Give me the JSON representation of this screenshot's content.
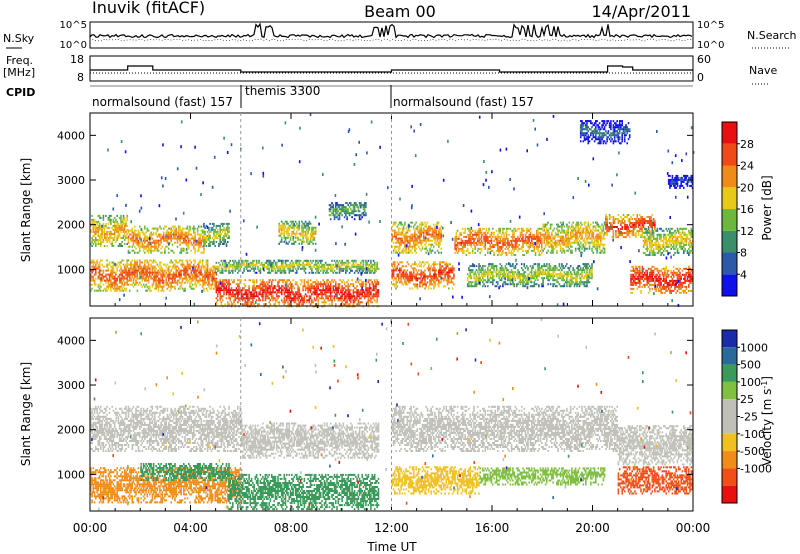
{
  "header": {
    "station": "Inuvik (fitACF)",
    "beam": "Beam 00",
    "date": "14/Apr/2011"
  },
  "nsky_panel": {
    "left_label": "N.Sky",
    "right_label": "N.Search",
    "left_ticks": [
      "10^5",
      "10^0"
    ],
    "right_ticks": [
      "10^5",
      "10^0"
    ]
  },
  "freq_panel": {
    "label_line1": "Freq.",
    "label_line2": "[MHz]",
    "right_label": "Nave",
    "left_ticks": [
      "18",
      "8"
    ],
    "right_ticks": [
      "60",
      "0"
    ]
  },
  "cpid": {
    "label": "CPID",
    "segments": [
      {
        "label": "normalsound (fast) 157",
        "start_hour": 0
      },
      {
        "label": "themis 3300",
        "start_hour": 6
      },
      {
        "label": "normalsound (fast) 157",
        "start_hour": 12
      }
    ]
  },
  "x_axis": {
    "title": "Time UT",
    "ticks": [
      "00:00",
      "04:00",
      "08:00",
      "12:00",
      "16:00",
      "20:00",
      "00:00"
    ],
    "range_hours": [
      0,
      24
    ]
  },
  "colors": {
    "power": [
      "#1010e8",
      "#2c5aa8",
      "#3a8f6a",
      "#6cb83c",
      "#e8c818",
      "#f08a18",
      "#f04a18",
      "#e81010"
    ],
    "velocity": [
      "#e81010",
      "#f05018",
      "#f08c18",
      "#f0c020",
      "#c0c0b8",
      "#c0c0b8",
      "#80c040",
      "#3a9a5a",
      "#2a6a9a",
      "#1a2aa8"
    ]
  },
  "chart_data": [
    {
      "type": "heatmap",
      "panel": "power",
      "ylabel": "Slant Range [km]",
      "yticks": [
        "1000",
        "2000",
        "3000",
        "4000"
      ],
      "ylim": [
        180,
        4500
      ],
      "xlim_hours": [
        0,
        24
      ],
      "colorbar": {
        "label": "Power [dB]",
        "ticks": [
          "4",
          "8",
          "12",
          "16",
          "20",
          "24",
          "28"
        ],
        "range": [
          0,
          32
        ]
      },
      "bands": [
        {
          "t_start": 0.0,
          "t_end": 1.5,
          "r_center": 1850,
          "r_half": 350,
          "value": 22
        },
        {
          "t_start": 1.5,
          "t_end": 4.5,
          "r_center": 1650,
          "r_half": 300,
          "value": 24
        },
        {
          "t_start": 4.5,
          "t_end": 5.5,
          "r_center": 1750,
          "r_half": 250,
          "value": 18
        },
        {
          "t_start": 0.0,
          "t_end": 5.0,
          "r_center": 850,
          "r_half": 350,
          "value": 26
        },
        {
          "t_start": 5.0,
          "t_end": 11.5,
          "r_center": 450,
          "r_half": 300,
          "value": 30
        },
        {
          "t_start": 5.0,
          "t_end": 11.5,
          "r_center": 1050,
          "r_half": 150,
          "value": 18
        },
        {
          "t_start": 7.5,
          "t_end": 9.0,
          "r_center": 1800,
          "r_half": 250,
          "value": 20
        },
        {
          "t_start": 9.5,
          "t_end": 11.0,
          "r_center": 2300,
          "r_half": 200,
          "value": 14
        },
        {
          "t_start": 12.0,
          "t_end": 14.5,
          "r_center": 850,
          "r_half": 300,
          "value": 28
        },
        {
          "t_start": 12.0,
          "t_end": 14.0,
          "r_center": 1700,
          "r_half": 350,
          "value": 24
        },
        {
          "t_start": 14.5,
          "t_end": 18.0,
          "r_center": 1600,
          "r_half": 300,
          "value": 26
        },
        {
          "t_start": 15.0,
          "t_end": 20.0,
          "r_center": 850,
          "r_half": 250,
          "value": 18
        },
        {
          "t_start": 18.0,
          "t_end": 20.5,
          "r_center": 1700,
          "r_half": 350,
          "value": 22
        },
        {
          "t_start": 20.5,
          "t_end": 22.5,
          "r_center": 1950,
          "r_half": 250,
          "value": 28
        },
        {
          "t_start": 21.5,
          "t_end": 24.0,
          "r_center": 750,
          "r_half": 300,
          "value": 30
        },
        {
          "t_start": 22.0,
          "t_end": 24.0,
          "r_center": 1600,
          "r_half": 300,
          "value": 20
        },
        {
          "t_start": 19.5,
          "t_end": 21.5,
          "r_center": 4050,
          "r_half": 250,
          "value": 8
        },
        {
          "t_start": 23.0,
          "t_end": 24.0,
          "r_center": 2950,
          "r_half": 150,
          "value": 6
        }
      ]
    },
    {
      "type": "heatmap",
      "panel": "velocity",
      "ylabel": "Slant Range [km]",
      "yticks": [
        "1000",
        "2000",
        "3000",
        "4000"
      ],
      "ylim": [
        180,
        4500
      ],
      "xlim_hours": [
        0,
        24
      ],
      "colorbar": {
        "label": "Velocity [m s^-1]",
        "ticks": [
          "1000",
          "500",
          "100",
          "25",
          "-25",
          "-100",
          "-500",
          "-1000"
        ]
      },
      "bands": [
        {
          "t_start": 0.0,
          "t_end": 6.0,
          "r_center": 2000,
          "r_half": 500,
          "color_index": 4
        },
        {
          "t_start": 6.0,
          "t_end": 11.5,
          "r_center": 1750,
          "r_half": 400,
          "color_index": 5
        },
        {
          "t_start": 12.0,
          "t_end": 21.0,
          "r_center": 2000,
          "r_half": 500,
          "color_index": 4
        },
        {
          "t_start": 21.0,
          "t_end": 24.0,
          "r_center": 1650,
          "r_half": 450,
          "color_index": 5
        },
        {
          "t_start": 0.0,
          "t_end": 6.0,
          "r_center": 750,
          "r_half": 400,
          "color_index": 2
        },
        {
          "t_start": 2.0,
          "t_end": 5.5,
          "r_center": 1050,
          "r_half": 200,
          "color_index": 7
        },
        {
          "t_start": 5.5,
          "t_end": 11.5,
          "r_center": 600,
          "r_half": 400,
          "color_index": 7
        },
        {
          "t_start": 12.0,
          "t_end": 15.5,
          "r_center": 850,
          "r_half": 300,
          "color_index": 3
        },
        {
          "t_start": 15.5,
          "t_end": 20.5,
          "r_center": 950,
          "r_half": 200,
          "color_index": 6
        },
        {
          "t_start": 21.0,
          "t_end": 24.0,
          "r_center": 850,
          "r_half": 300,
          "color_index": 1
        }
      ]
    }
  ]
}
